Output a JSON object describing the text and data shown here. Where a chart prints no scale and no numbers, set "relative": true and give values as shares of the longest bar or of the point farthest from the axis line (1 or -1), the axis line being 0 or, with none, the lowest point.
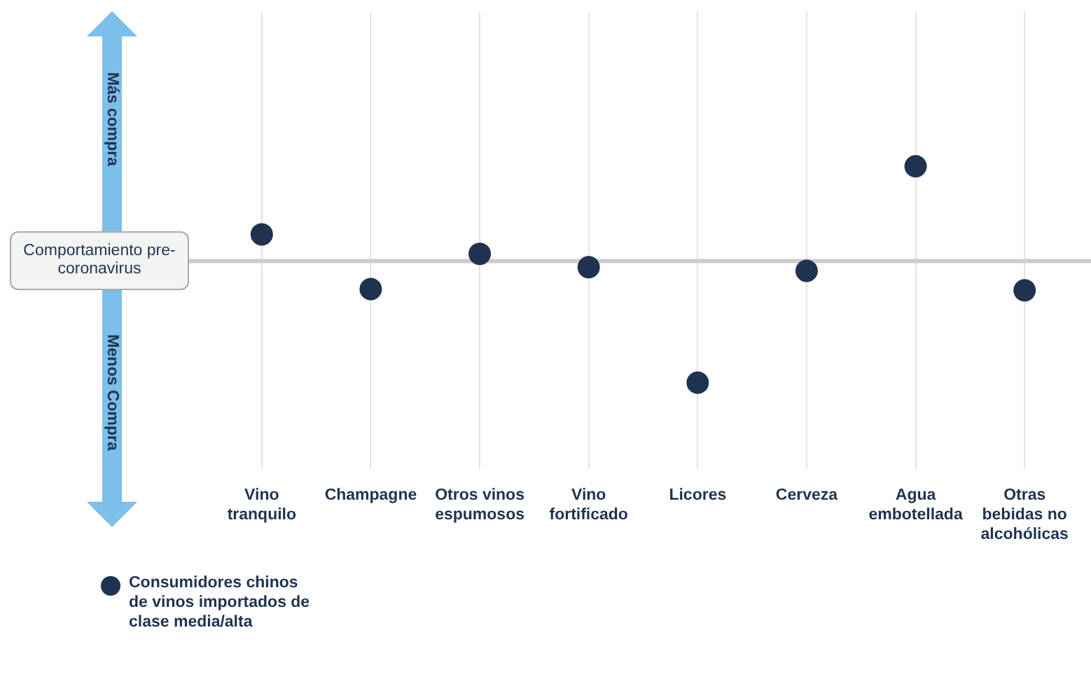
{
  "chart_data": {
    "type": "scatter",
    "relative": true,
    "categories": [
      "Vino tranquilo",
      "Champagne",
      "Otros vinos espumosos",
      "Vino fortificado",
      "Licores",
      "Cerveza",
      "Agua embotellada",
      "Otras bebidas no alcohólicas"
    ],
    "series": [
      {
        "name": "Consumidores chinos de vinos importados de clase media/alta",
        "color": "#1f3350",
        "values": [
          0.22,
          -0.23,
          0.06,
          -0.05,
          -1,
          -0.08,
          0.78,
          -0.24
        ]
      }
    ],
    "ref_lines": [
      {
        "axis": "y",
        "value": 0,
        "label": "Comportamiento pre-coronavirus",
        "color": "#cccccc"
      }
    ],
    "annotations": [
      "Más compra",
      "Menos Compra"
    ],
    "grid": "x",
    "legend": "bottom left",
    "marker": "circle"
  }
}
